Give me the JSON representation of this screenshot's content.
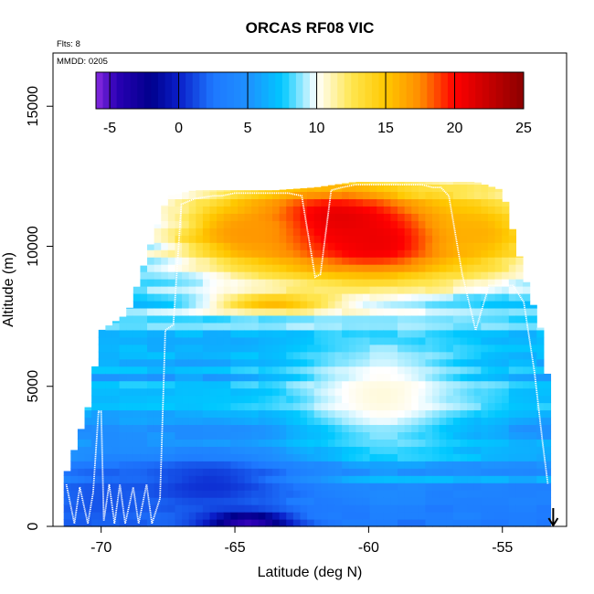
{
  "chart_data": {
    "type": "heatmap",
    "title": "ORCAS RF08 VIC",
    "xlabel": "Latitude (deg N)",
    "ylabel": "Altitude (m)",
    "flights_note": "Flts: 8",
    "date_note": "MMDD: 0205",
    "xlim": [
      -71.8,
      -52.6
    ],
    "ylim": [
      0,
      16900
    ],
    "x_ticks": [
      -70,
      -65,
      -60,
      -55
    ],
    "x_tick_labels": [
      "-70",
      "-65",
      "-60",
      "-55"
    ],
    "y_ticks": [
      0,
      5000,
      10000,
      15000
    ],
    "y_tick_labels": [
      "0",
      "5000",
      "10000",
      "15000"
    ],
    "grid": false,
    "colorbar": {
      "location": "top-inside",
      "range": [
        -6,
        25
      ],
      "ticks": [
        -5,
        0,
        5,
        10,
        15,
        20,
        25
      ],
      "tick_labels": [
        "-5",
        "0",
        "5",
        "10",
        "15",
        "20",
        "25"
      ],
      "color_stops": [
        {
          "v": -6,
          "color": "#8a2be2"
        },
        {
          "v": -4.5,
          "color": "#2a00b4"
        },
        {
          "v": -2,
          "color": "#00008c"
        },
        {
          "v": 0,
          "color": "#0a1ec8"
        },
        {
          "v": 2.5,
          "color": "#1e78ff"
        },
        {
          "v": 5,
          "color": "#1e90ff"
        },
        {
          "v": 7.5,
          "color": "#00c8ff"
        },
        {
          "v": 10,
          "color": "#ffffff"
        },
        {
          "v": 12.5,
          "color": "#ffe650"
        },
        {
          "v": 15,
          "color": "#ffc800"
        },
        {
          "v": 17.5,
          "color": "#ff8c00"
        },
        {
          "v": 20,
          "color": "#ff0000"
        },
        {
          "v": 25,
          "color": "#8b0000"
        }
      ]
    },
    "coverage_envelope": {
      "lat": [
        -71.4,
        -70.5,
        -70.0,
        -69.0,
        -68.0,
        -67.5,
        -66.5,
        -65.0,
        -63.5,
        -62.0,
        -60.5,
        -59.0,
        -57.5,
        -56.0,
        -55.0,
        -54.2,
        -53.4,
        -53.2
      ],
      "alt_top": [
        1600,
        4200,
        7000,
        7600,
        10500,
        11800,
        12000,
        12000,
        12000,
        12100,
        12300,
        12300,
        12300,
        12300,
        12000,
        9000,
        6500,
        3500
      ]
    },
    "field_features": [
      {
        "lat": -61.5,
        "alt": 10800,
        "lat_width": 3.2,
        "alt_width": 1300,
        "value": 23.5
      },
      {
        "lat": -59.5,
        "alt": 10200,
        "lat_width": 4.0,
        "alt_width": 1500,
        "value": 21.0
      },
      {
        "lat": -64.5,
        "alt": 10500,
        "lat_width": 2.5,
        "alt_width": 1200,
        "value": 17.0
      },
      {
        "lat": -56.0,
        "alt": 10500,
        "lat_width": 2.0,
        "alt_width": 1200,
        "value": 16.0
      },
      {
        "lat": -63.5,
        "alt": 8000,
        "lat_width": 2.5,
        "alt_width": 350,
        "value": 16.0
      },
      {
        "lat": -59.5,
        "alt": 4700,
        "lat_width": 3.5,
        "alt_width": 2200,
        "value": 10.5
      },
      {
        "lat": -66.0,
        "alt": 1500,
        "lat_width": 3.5,
        "alt_width": 1200,
        "value": 0.5
      },
      {
        "lat": -70.0,
        "alt": 1000,
        "lat_width": 2.0,
        "alt_width": 1500,
        "value": 1.5
      },
      {
        "lat": -64.5,
        "alt": 200,
        "lat_width": 1.5,
        "alt_width": 300,
        "value": -5.0
      }
    ],
    "flight_track": {
      "lat": [
        -71.3,
        -71.0,
        -70.8,
        -70.5,
        -70.3,
        -70.1,
        -70.0,
        -69.9,
        -69.7,
        -69.5,
        -69.3,
        -69.1,
        -68.8,
        -68.6,
        -68.3,
        -68.1,
        -67.8,
        -67.6,
        -67.3,
        -67.0,
        -66.5,
        -65.8,
        -65.5,
        -65.0,
        -64.5,
        -64.0,
        -63.6,
        -63.3,
        -63.0,
        -62.5,
        -62.0,
        -61.8,
        -61.4,
        -61.0,
        -60.5,
        -60.0,
        -59.6,
        -59.3,
        -59.0,
        -58.6,
        -58.3,
        -58.0,
        -57.6,
        -57.3,
        -57.0,
        -56.5,
        -56.0,
        -55.5,
        -55.0,
        -54.6,
        -54.2,
        -53.8,
        -53.5,
        -53.3
      ],
      "alt": [
        1500,
        100,
        1400,
        100,
        1200,
        4100,
        4100,
        200,
        1500,
        100,
        1500,
        100,
        1400,
        100,
        1500,
        100,
        1000,
        7000,
        7200,
        11500,
        11700,
        11800,
        11800,
        11900,
        11900,
        11900,
        11900,
        11900,
        11900,
        11800,
        8900,
        9000,
        12000,
        12100,
        12200,
        12200,
        12200,
        12200,
        12200,
        12200,
        12200,
        12200,
        12100,
        12100,
        11800,
        9000,
        7000,
        8600,
        8600,
        8600,
        8000,
        5500,
        3000,
        1500
      ],
      "color": "#ffffff"
    },
    "arrow_marker": {
      "lat": -53.1,
      "direction": "down"
    }
  }
}
